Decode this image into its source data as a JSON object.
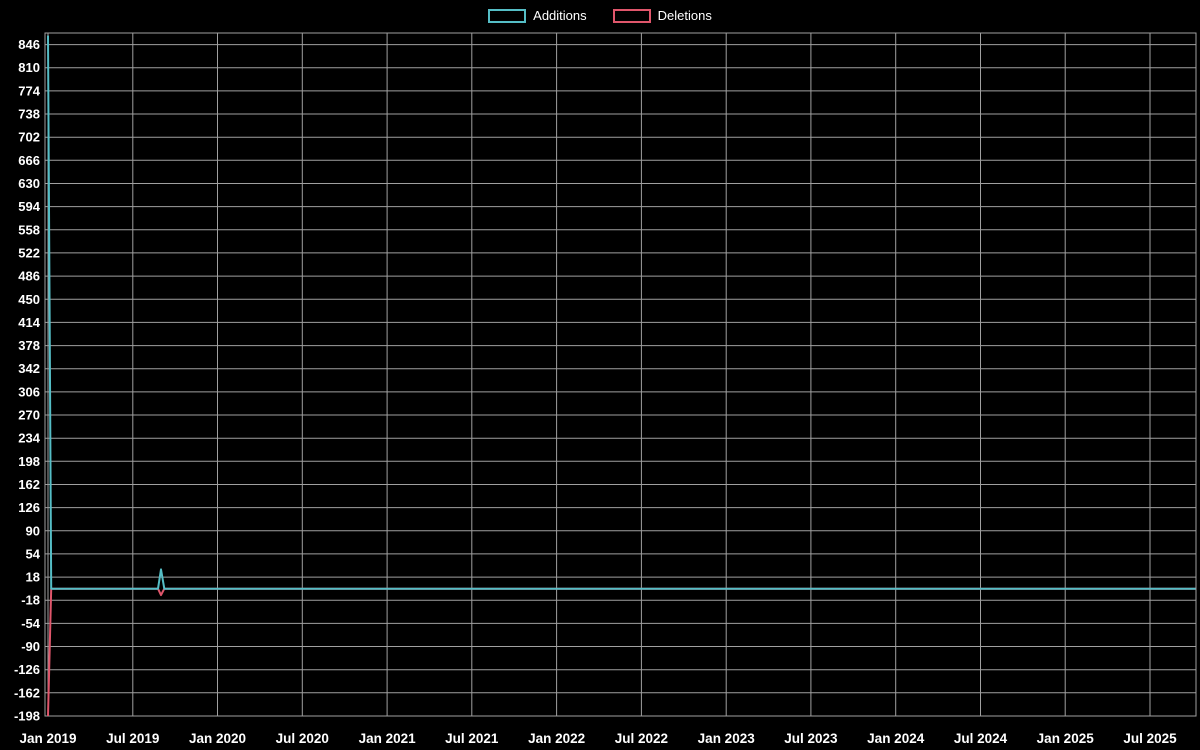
{
  "colors": {
    "background": "#000000",
    "grid": "#a0a0a0",
    "text": "#ffffff",
    "additions": "#55bec6",
    "deletions": "#e0566b"
  },
  "chart_data": {
    "type": "line",
    "title": "",
    "xlabel": "",
    "ylabel": "",
    "grid": true,
    "legend_position": "top",
    "ylim": [
      -198,
      864
    ],
    "y_tick_step": 36,
    "y_ticks": [
      846,
      810,
      774,
      738,
      702,
      666,
      630,
      594,
      558,
      522,
      486,
      450,
      414,
      378,
      342,
      306,
      270,
      234,
      198,
      162,
      126,
      90,
      54,
      18,
      -18,
      -54,
      -90,
      -126,
      -162,
      -198
    ],
    "x_ticks": [
      "Jan 2019",
      "Jul 2019",
      "Jan 2020",
      "Jul 2020",
      "Jan 2021",
      "Jul 2021",
      "Jan 2022",
      "Jul 2022",
      "Jan 2023",
      "Jul 2023",
      "Jan 2024",
      "Jul 2024",
      "Jan 2025",
      "Jul 2025"
    ],
    "series": [
      {
        "name": "Additions",
        "color": "#55bec6",
        "points": [
          [
            "2019-01-01",
            860
          ],
          [
            "2019-01-08",
            0
          ],
          [
            "2019-08-25",
            0
          ],
          [
            "2019-09-01",
            30
          ],
          [
            "2019-09-08",
            0
          ],
          [
            "2025-10-08",
            0
          ]
        ]
      },
      {
        "name": "Deletions",
        "color": "#e0566b",
        "points": [
          [
            "2019-01-01",
            -198
          ],
          [
            "2019-01-08",
            0
          ],
          [
            "2019-08-25",
            0
          ],
          [
            "2019-09-01",
            -10
          ],
          [
            "2019-09-08",
            0
          ],
          [
            "2025-10-08",
            0
          ]
        ]
      }
    ]
  }
}
